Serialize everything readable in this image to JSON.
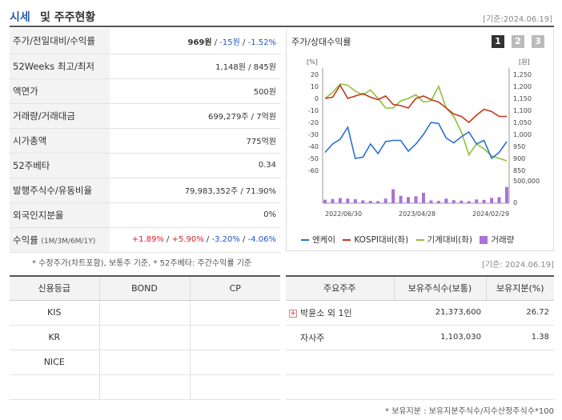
{
  "header": {
    "title_a": "시세",
    "title_b": "및 주주현황",
    "date": "[기준:2024.06.19]"
  },
  "info": {
    "price_label": "주가/전일대비/수익률",
    "price": "969원",
    "change": "-15원",
    "pct": "-1.52%",
    "sep": " / ",
    "wk52_label": "52Weeks 최고/최저",
    "wk52": "1,148원 / 845원",
    "par_label": "액면가",
    "par": "500원",
    "vol_label": "거래량/거래대금",
    "vol": "699,279주 / 7억원",
    "mcap_label": "시가총액",
    "mcap": "775억원",
    "beta_label": "52주베타",
    "beta": "0.34",
    "shares_label": "발행주식수/유동비율",
    "shares": "79,983,352주 / 71.90%",
    "foreign_label": "외국인지분율",
    "foreign": "0%",
    "ret_label": "수익률",
    "ret_periods": "(1M/3M/6M/1Y)",
    "ret_1m": "+1.89%",
    "ret_3m": "+5.90%",
    "ret_6m": "-3.20%",
    "ret_1y": "-4.06%",
    "note": "* 수정주가(차트포함), 보통주 기준, * 52주베타: 주간수익률 기준"
  },
  "chart_panel": {
    "title": "주가/상대수익률",
    "pages": [
      "1",
      "2",
      "3"
    ],
    "left_unit": "[%]",
    "right_unit": "[원]",
    "legend": [
      "엔케이",
      "KOSPI대비(좌)",
      "기계대비(좌)",
      "거래량"
    ],
    "colors": {
      "stock": "#2a6fcf",
      "kospi": "#c8361c",
      "sector": "#8bc33a",
      "volume": "#a972d8"
    }
  },
  "chart_data": {
    "type": "line",
    "x_ticks": [
      "2022/06/30",
      "2023/04/28",
      "2024/02/29"
    ],
    "left_axis": {
      "label": "[%]",
      "range": [
        -60,
        20
      ],
      "ticks": [
        20,
        10,
        0,
        -10,
        -20,
        -30,
        -40,
        -50,
        -60
      ]
    },
    "right_axis": {
      "label": "[원]",
      "range": [
        850,
        1250
      ],
      "ticks": [
        1250,
        1200,
        1150,
        1100,
        1050,
        1000,
        950,
        900,
        850
      ]
    },
    "volume_axis": {
      "ticks": [
        "500,000",
        "0"
      ],
      "range": [
        0,
        1000000
      ]
    },
    "series": [
      {
        "name": "엔케이",
        "axis": "right",
        "values": [
          925,
          960,
          980,
          1030,
          900,
          905,
          960,
          920,
          970,
          975,
          975,
          930,
          960,
          1000,
          1050,
          1045,
          985,
          965,
          990,
          1010,
          960,
          975,
          900,
          925,
          970
        ]
      },
      {
        "name": "KOSPI대비(좌)",
        "axis": "left",
        "values": [
          0,
          1,
          11,
          0,
          2,
          4,
          1,
          -1,
          2,
          -5,
          -6,
          -8,
          0,
          2,
          -1,
          -3,
          -8,
          -13,
          -15,
          -20,
          -14,
          -9,
          -11,
          -15,
          -15
        ]
      },
      {
        "name": "기계대비(좌)",
        "axis": "left",
        "values": [
          0,
          5,
          12,
          11,
          6,
          3,
          7,
          0,
          -8,
          -8,
          -2,
          0,
          3,
          -3,
          -2,
          10,
          -8,
          -15,
          -28,
          -47,
          -38,
          -42,
          -48,
          -50,
          -52
        ]
      },
      {
        "name": "거래량",
        "axis": "volume",
        "type": "bar",
        "values": [
          150000,
          180000,
          220000,
          200000,
          170000,
          120000,
          100000,
          90000,
          200000,
          600000,
          320000,
          260000,
          300000,
          450000,
          120000,
          100000,
          200000,
          130000,
          110000,
          90000,
          160000,
          140000,
          230000,
          260000,
          700000
        ]
      }
    ]
  },
  "date2": "[기준: 2024.06.19]",
  "credit": {
    "headers": [
      "신용등급",
      "BOND",
      "CP"
    ],
    "rows": [
      {
        "agency": "KIS",
        "bond": "",
        "cp": ""
      },
      {
        "agency": "KR",
        "bond": "",
        "cp": ""
      },
      {
        "agency": "NICE",
        "bond": "",
        "cp": ""
      },
      {
        "agency": "",
        "bond": "",
        "cp": ""
      }
    ]
  },
  "holders": {
    "headers": [
      "주요주주",
      "보유주식수(보통)",
      "보유지분(%)"
    ],
    "rows": [
      {
        "name": "박윤소 외 1인",
        "shares": "21,373,600",
        "pct": "26.72",
        "expand": "+"
      },
      {
        "name": "자사주",
        "shares": "1,103,030",
        "pct": "1.38",
        "expand": ""
      },
      {
        "name": "",
        "shares": "",
        "pct": "",
        "expand": ""
      },
      {
        "name": "",
        "shares": "",
        "pct": "",
        "expand": ""
      }
    ],
    "note": "* 보유지분 : 보유지분주식수/지수산정주식수*100"
  }
}
